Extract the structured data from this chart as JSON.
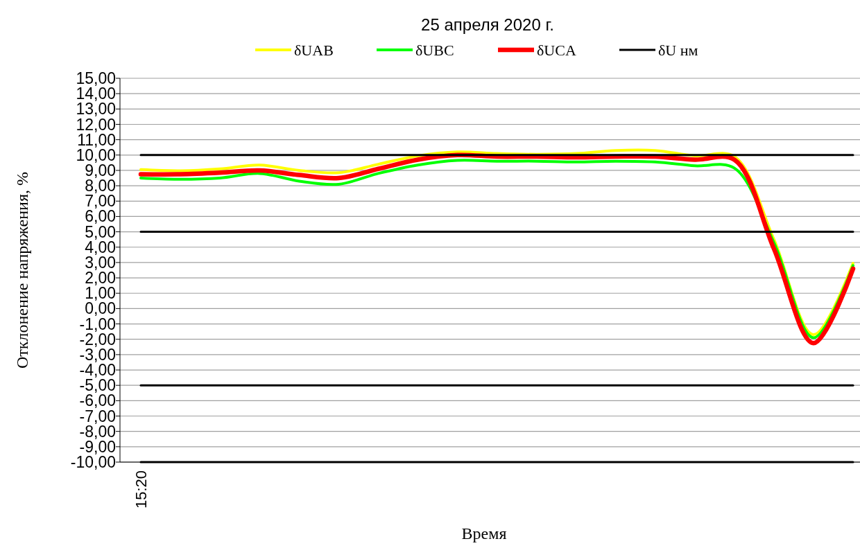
{
  "chart_data": {
    "type": "line",
    "title": "25 апреля 2020 г.",
    "xlabel": "Время",
    "ylabel": "Отклонение напряжения, %",
    "categories": [
      "15:20",
      null,
      null,
      null,
      null,
      null,
      null,
      null,
      null,
      null,
      null,
      null,
      null,
      null,
      null,
      null,
      null,
      null,
      null
    ],
    "series": [
      {
        "name": "δUAB",
        "color": "#ffff00",
        "values": [
          9.05,
          8.98,
          9.1,
          9.35,
          9.0,
          8.85,
          9.4,
          9.95,
          10.2,
          10.1,
          10.05,
          10.1,
          10.3,
          10.3,
          9.95,
          9.9,
          4.5,
          -1.7,
          2.95
        ]
      },
      {
        "name": "δUBC",
        "color": "#00ff00",
        "values": [
          8.5,
          8.42,
          8.5,
          8.8,
          8.3,
          8.1,
          8.8,
          9.35,
          9.65,
          9.6,
          9.6,
          9.55,
          9.6,
          9.55,
          9.3,
          9.15,
          4.3,
          -1.9,
          2.8
        ]
      },
      {
        "name": "δUCA",
        "color": "#ff0000",
        "values": [
          8.75,
          8.75,
          8.85,
          9.0,
          8.7,
          8.5,
          9.1,
          9.7,
          10.0,
          9.9,
          9.9,
          9.85,
          9.9,
          9.9,
          9.7,
          9.7,
          3.9,
          -2.25,
          2.6
        ]
      },
      {
        "name": "δU нм",
        "color": "#000000",
        "values": [
          10,
          10,
          10,
          10,
          10,
          10,
          10,
          10,
          10,
          10,
          10,
          10,
          10,
          10,
          10,
          10,
          10,
          10,
          10
        ]
      },
      {
        "color": "#000000",
        "values": [
          5,
          5,
          5,
          5,
          5,
          5,
          5,
          5,
          5,
          5,
          5,
          5,
          5,
          5,
          5,
          5,
          5,
          5,
          5
        ]
      },
      {
        "color": "#000000",
        "values": [
          -5,
          -5,
          -5,
          -5,
          -5,
          -5,
          -5,
          -5,
          -5,
          -5,
          -5,
          -5,
          -5,
          -5,
          -5,
          -5,
          -5,
          -5,
          -5
        ]
      },
      {
        "color": "#000000",
        "values": [
          -10,
          -10,
          -10,
          -10,
          -10,
          -10,
          -10,
          -10,
          -10,
          -10,
          -10,
          -10,
          -10,
          -10,
          -10,
          -10,
          -10,
          -10,
          -10
        ]
      }
    ],
    "ylim": [
      -10,
      15
    ],
    "yticks": [
      {
        "value": 15,
        "label": "15,00"
      },
      {
        "value": 14,
        "label": "14,00"
      },
      {
        "value": 13,
        "label": "13,00"
      },
      {
        "value": 12,
        "label": "12,00"
      },
      {
        "value": 11,
        "label": "11,00"
      },
      {
        "value": 10,
        "label": "10,00"
      },
      {
        "value": 9,
        "label": "9,00"
      },
      {
        "value": 8,
        "label": "8,00"
      },
      {
        "value": 7,
        "label": "7,00"
      },
      {
        "value": 6,
        "label": "6,00"
      },
      {
        "value": 5,
        "label": "5,00"
      },
      {
        "value": 4,
        "label": "4,00"
      },
      {
        "value": 3,
        "label": "3,00"
      },
      {
        "value": 2,
        "label": "2,00"
      },
      {
        "value": 1,
        "label": "1,00"
      },
      {
        "value": 0,
        "label": "0,00"
      },
      {
        "value": -1,
        "label": "-1,00"
      },
      {
        "value": -2,
        "label": "-2,00"
      },
      {
        "value": -3,
        "label": "-3,00"
      },
      {
        "value": -4,
        "label": "-4,00"
      },
      {
        "value": -5,
        "label": "-5,00"
      },
      {
        "value": -6,
        "label": "-6,00"
      },
      {
        "value": -7,
        "label": "-7,00"
      },
      {
        "value": -8,
        "label": "-8,00"
      },
      {
        "value": -9,
        "label": "-9,00"
      },
      {
        "value": -10,
        "label": "-10,00"
      }
    ],
    "grid": "y",
    "legend": "top",
    "marker": "none",
    "line_style": "solid"
  }
}
